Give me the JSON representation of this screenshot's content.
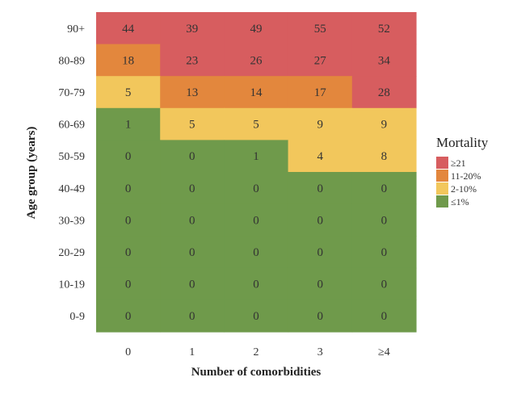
{
  "chart_data": {
    "type": "heatmap",
    "title": "",
    "xlabel": "Number of comorbidities",
    "ylabel": "Age group (years)",
    "x_categories": [
      "0",
      "1",
      "2",
      "3",
      "≥4"
    ],
    "y_categories": [
      "90+",
      "80-89",
      "70-79",
      "60-69",
      "50-59",
      "40-49",
      "30-39",
      "20-29",
      "10-19",
      "0-9"
    ],
    "values": [
      [
        44,
        39,
        49,
        55,
        52
      ],
      [
        18,
        23,
        26,
        27,
        34
      ],
      [
        5,
        13,
        14,
        17,
        28
      ],
      [
        1,
        5,
        5,
        9,
        9
      ],
      [
        0,
        0,
        1,
        4,
        8
      ],
      [
        0,
        0,
        0,
        0,
        0
      ],
      [
        0,
        0,
        0,
        0,
        0
      ],
      [
        0,
        0,
        0,
        0,
        0
      ],
      [
        0,
        0,
        0,
        0,
        0
      ],
      [
        0,
        0,
        0,
        0,
        0
      ]
    ],
    "legend": {
      "title": "Mortality",
      "placement": "right",
      "items": [
        {
          "label": "≥21",
          "color": "#d75d5f"
        },
        {
          "label": "11-20%",
          "color": "#e3873d"
        },
        {
          "label": "2-10%",
          "color": "#f2c75c"
        },
        {
          "label": "≤1%",
          "color": "#6f9a4b"
        }
      ]
    },
    "grid": false
  }
}
